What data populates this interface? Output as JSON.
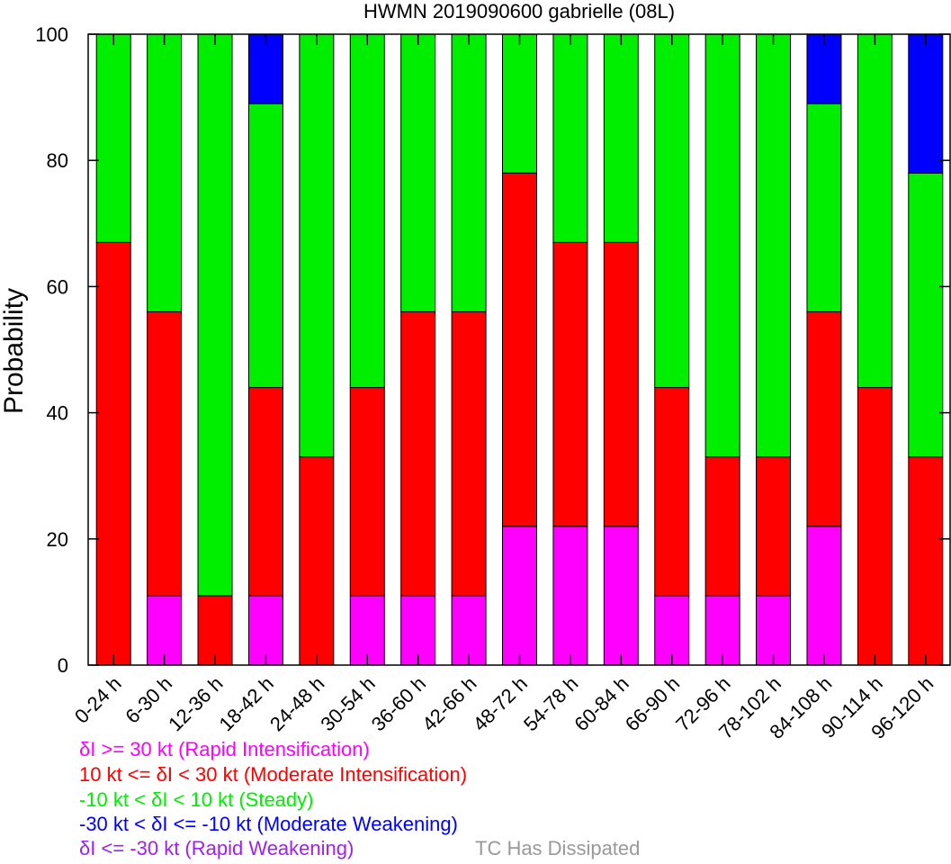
{
  "chart_data": {
    "type": "bar",
    "stacked": true,
    "title": "HWMN 2019090600 gabrielle (08L)",
    "ylabel": "Probability",
    "ylim": [
      0,
      100
    ],
    "yticks": [
      "0",
      "20",
      "40",
      "60",
      "80",
      "100"
    ],
    "categories": [
      "0-24 h",
      "6-30 h",
      "12-36 h",
      "18-42 h",
      "24-48 h",
      "30-54 h",
      "36-60 h",
      "42-66 h",
      "48-72 h",
      "54-78 h",
      "60-84 h",
      "66-90 h",
      "72-96 h",
      "78-102 h",
      "84-108 h",
      "90-114 h",
      "96-120 h"
    ],
    "series": [
      {
        "key": "ri",
        "color": "#ff00ff",
        "values": [
          0,
          11,
          0,
          11,
          0,
          11,
          11,
          11,
          22,
          22,
          22,
          11,
          11,
          11,
          22,
          0,
          0
        ]
      },
      {
        "key": "mi",
        "color": "#ff0000",
        "values": [
          67,
          45,
          11,
          33,
          33,
          33,
          45,
          45,
          56,
          45,
          45,
          33,
          22,
          22,
          34,
          44,
          33
        ]
      },
      {
        "key": "st",
        "color": "#00ee00",
        "values": [
          33,
          44,
          89,
          45,
          67,
          56,
          44,
          44,
          22,
          33,
          33,
          56,
          67,
          67,
          33,
          56,
          45
        ]
      },
      {
        "key": "mw",
        "color": "#0000ff",
        "values": [
          0,
          0,
          0,
          11,
          0,
          0,
          0,
          0,
          0,
          0,
          0,
          0,
          0,
          0,
          11,
          0,
          22
        ]
      },
      {
        "key": "rw",
        "color": "#a020f0",
        "values": [
          0,
          0,
          0,
          0,
          0,
          0,
          0,
          0,
          0,
          0,
          0,
          0,
          0,
          0,
          0,
          0,
          0
        ]
      }
    ],
    "grid": false
  },
  "legend": [
    {
      "text": "δI >= 30 kt (Rapid Intensification)",
      "color": "#ff00ff"
    },
    {
      "text": "10 kt <= δI < 30 kt (Moderate Intensification)",
      "color": "#ff0000"
    },
    {
      "text": "-10 kt < δI < 10 kt (Steady)",
      "color": "#00ee00"
    },
    {
      "text": "-30 kt < δI <= -10 kt (Moderate Weakening)",
      "color": "#0000ff"
    },
    {
      "text": "δI <= -30 kt (Rapid Weakening)",
      "color": "#a020f0"
    }
  ],
  "dissipated": {
    "text": "TC Has Dissipated",
    "color": "#999999"
  }
}
